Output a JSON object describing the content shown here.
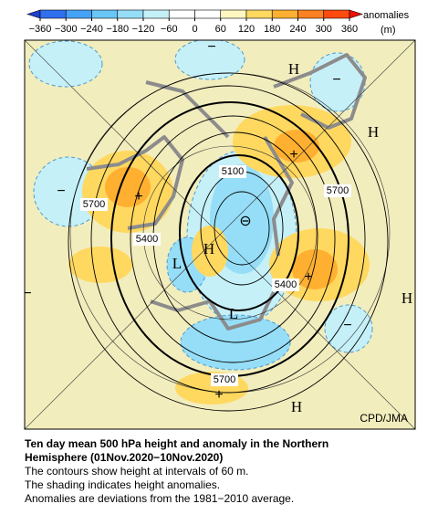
{
  "colorbar": {
    "ticks": [
      {
        "value": -360,
        "label": "−360"
      },
      {
        "value": -300,
        "label": "−300"
      },
      {
        "value": -240,
        "label": "−240"
      },
      {
        "value": -180,
        "label": "−180"
      },
      {
        "value": -120,
        "label": "−120"
      },
      {
        "value": -60,
        "label": "−60"
      },
      0,
      60,
      120,
      180,
      240,
      300,
      360
    ],
    "colors": [
      "#1f3fd0",
      "#2f6ff0",
      "#45a2f8",
      "#68c6f8",
      "#96def8",
      "#c6f0f8",
      "#ffffff",
      "#ffffff",
      "#fff6c0",
      "#ffd860",
      "#ffb030",
      "#ff8020",
      "#ff4a10",
      "#f01000"
    ],
    "title": "anomalies",
    "unit": "(m)"
  },
  "map": {
    "contour_labels": [
      "5100",
      "5700",
      "5400",
      "5700",
      "5400",
      "5700"
    ],
    "centers": [
      "H",
      "H",
      "H",
      "H",
      "H",
      "L",
      "L"
    ],
    "anomaly_signs": [
      "−",
      "−",
      "−",
      "−",
      "−",
      "+",
      "+",
      "+",
      "+",
      "⊖"
    ],
    "credit": "CPD/JMA"
  },
  "caption": {
    "title": [
      "Ten day mean 500 hPa height and anomaly in the Northern",
      "Hemisphere (01Nov.2020−10Nov.2020)"
    ],
    "lines": [
      "The contours show height at intervals of 60 m.",
      "The shading indicates height anomalies.",
      "Anomalies are deviations from the 1981−2010 average."
    ]
  }
}
